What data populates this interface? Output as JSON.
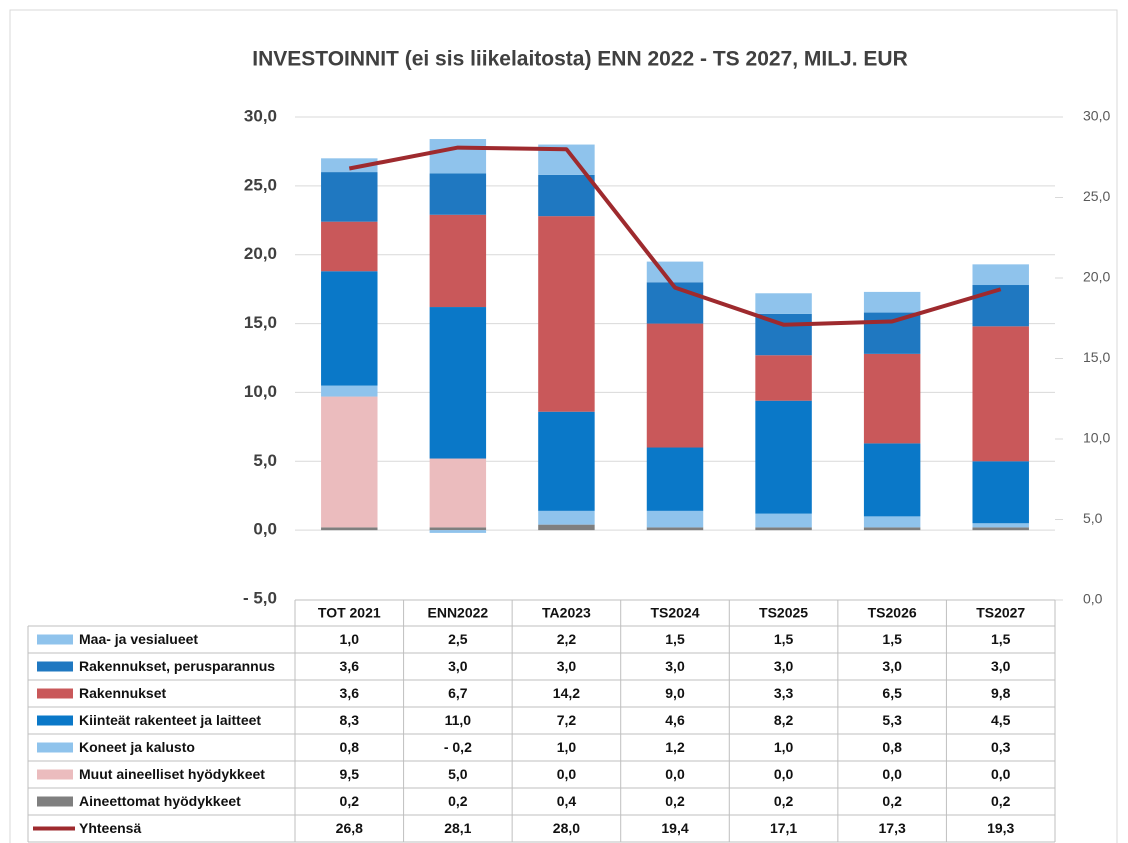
{
  "chart_data": {
    "type": "bar",
    "stacked": true,
    "title": "INVESTOINNIT (ei sis liikelaitosta) ENN 2022 - TS 2027, MILJ. EUR",
    "categories": [
      "TOT 2021",
      "ENN2022",
      "TA2023",
      "TS2024",
      "TS2025",
      "TS2026",
      "TS2027"
    ],
    "series": [
      {
        "name": "Maa- ja vesialueet",
        "color": "#8fc3ec",
        "values": [
          1.0,
          2.5,
          2.2,
          1.5,
          1.5,
          1.5,
          1.5
        ],
        "value_labels": [
          "1,0",
          "2,5",
          "2,2",
          "1,5",
          "1,5",
          "1,5",
          "1,5"
        ]
      },
      {
        "name": "Rakennukset, perusparannus",
        "color": "#1f78c1",
        "values": [
          3.6,
          3.0,
          3.0,
          3.0,
          3.0,
          3.0,
          3.0
        ],
        "value_labels": [
          "3,6",
          "3,0",
          "3,0",
          "3,0",
          "3,0",
          "3,0",
          "3,0"
        ]
      },
      {
        "name": "Rakennukset",
        "color": "#c9585a",
        "values": [
          3.6,
          6.7,
          14.2,
          9.0,
          3.3,
          6.5,
          9.8
        ],
        "value_labels": [
          "3,6",
          "6,7",
          "14,2",
          "9,0",
          "3,3",
          "6,5",
          "9,8"
        ]
      },
      {
        "name": "Kiinteät rakenteet ja laitteet",
        "color": "#0a78c8",
        "values": [
          8.3,
          11.0,
          7.2,
          4.6,
          8.2,
          5.3,
          4.5
        ],
        "value_labels": [
          "8,3",
          "11,0",
          "7,2",
          "4,6",
          "8,2",
          "5,3",
          "4,5"
        ]
      },
      {
        "name": "Koneet ja kalusto",
        "color": "#8fc3ec",
        "values": [
          0.8,
          -0.2,
          1.0,
          1.2,
          1.0,
          0.8,
          0.3
        ],
        "value_labels": [
          "0,8",
          "- 0,2",
          "1,0",
          "1,2",
          "1,0",
          "0,8",
          "0,3"
        ]
      },
      {
        "name": "Muut aineelliset hyödykkeet",
        "color": "#ebbcbe",
        "values": [
          9.5,
          5.0,
          0.0,
          0.0,
          0.0,
          0.0,
          0.0
        ],
        "value_labels": [
          "9,5",
          "5,0",
          "0,0",
          "0,0",
          "0,0",
          "0,0",
          "0,0"
        ]
      },
      {
        "name": "Aineettomat hyödykkeet",
        "color": "#7f7f7f",
        "values": [
          0.2,
          0.2,
          0.4,
          0.2,
          0.2,
          0.2,
          0.2
        ],
        "value_labels": [
          "0,2",
          "0,2",
          "0,4",
          "0,2",
          "0,2",
          "0,2",
          "0,2"
        ]
      },
      {
        "name": "Yhteensä",
        "type": "line",
        "axis": "y2",
        "color": "#9e2a2e",
        "values": [
          26.8,
          28.1,
          28.0,
          19.4,
          17.1,
          17.3,
          19.3
        ],
        "value_labels": [
          "26,8",
          "28,1",
          "28,0",
          "19,4",
          "17,1",
          "17,3",
          "19,3"
        ]
      }
    ],
    "ylim": [
      -5,
      30
    ],
    "yticks": [
      {
        "value": -5,
        "label": "- 5,0"
      },
      {
        "value": 0,
        "label": "0,0"
      },
      {
        "value": 5,
        "label": "5,0"
      },
      {
        "value": 10,
        "label": "10,0"
      },
      {
        "value": 15,
        "label": "15,0"
      },
      {
        "value": 20,
        "label": "20,0"
      },
      {
        "value": 25,
        "label": "25,0"
      },
      {
        "value": 30,
        "label": "30,0"
      }
    ],
    "y2lim": [
      0,
      30
    ],
    "y2ticks": [
      {
        "value": 0,
        "label": "0,0"
      },
      {
        "value": 5,
        "label": "5,0"
      },
      {
        "value": 10,
        "label": "10,0"
      },
      {
        "value": 15,
        "label": "15,0"
      },
      {
        "value": 20,
        "label": "20,0"
      },
      {
        "value": 25,
        "label": "25,0"
      },
      {
        "value": 30,
        "label": "30,0"
      }
    ],
    "grid": true
  }
}
